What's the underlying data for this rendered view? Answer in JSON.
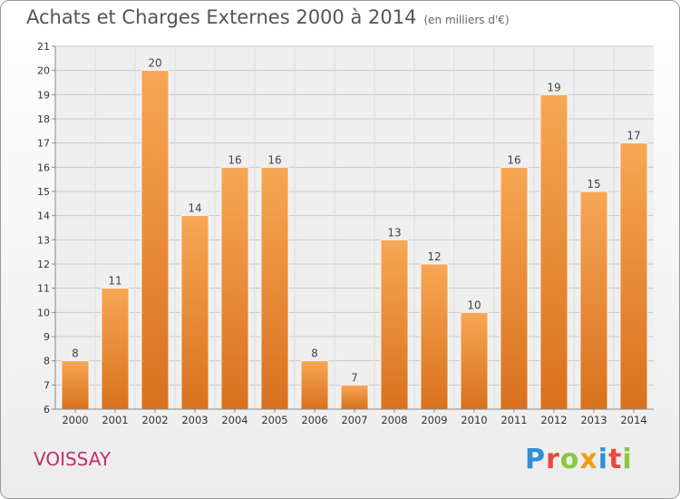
{
  "header": {
    "title": "Achats et Charges Externes 2000 à 2014",
    "unit": "(en milliers d'€)"
  },
  "commune": "VOISSAY",
  "logo": {
    "text": "Proxiti",
    "letter_colors": [
      "#2f8fd8",
      "#e84a3c",
      "#8cc63f",
      "#f39c12",
      "#2f8fd8",
      "#e84a3c",
      "#8cc63f"
    ]
  },
  "colors": {
    "bar_light": "#f7a755",
    "bar_dark": "#d8711e",
    "grid": "#c8c8c8",
    "axis_text": "#333333"
  },
  "chart_data": {
    "type": "bar",
    "title": "Achats et Charges Externes 2000 à 2014",
    "subtitle": "(en milliers d'€)",
    "xlabel": "",
    "ylabel": "",
    "categories": [
      "2000",
      "2001",
      "2002",
      "2003",
      "2004",
      "2005",
      "2006",
      "2007",
      "2008",
      "2009",
      "2010",
      "2011",
      "2012",
      "2013",
      "2014"
    ],
    "values": [
      8,
      11,
      20,
      14,
      16,
      16,
      8,
      7,
      13,
      12,
      10,
      16,
      19,
      15,
      17
    ],
    "ylim": [
      6,
      21
    ],
    "yticks": [
      6,
      7,
      8,
      9,
      10,
      11,
      12,
      13,
      14,
      15,
      16,
      17,
      18,
      19,
      20,
      21
    ],
    "grid": true,
    "data_labels": true
  }
}
